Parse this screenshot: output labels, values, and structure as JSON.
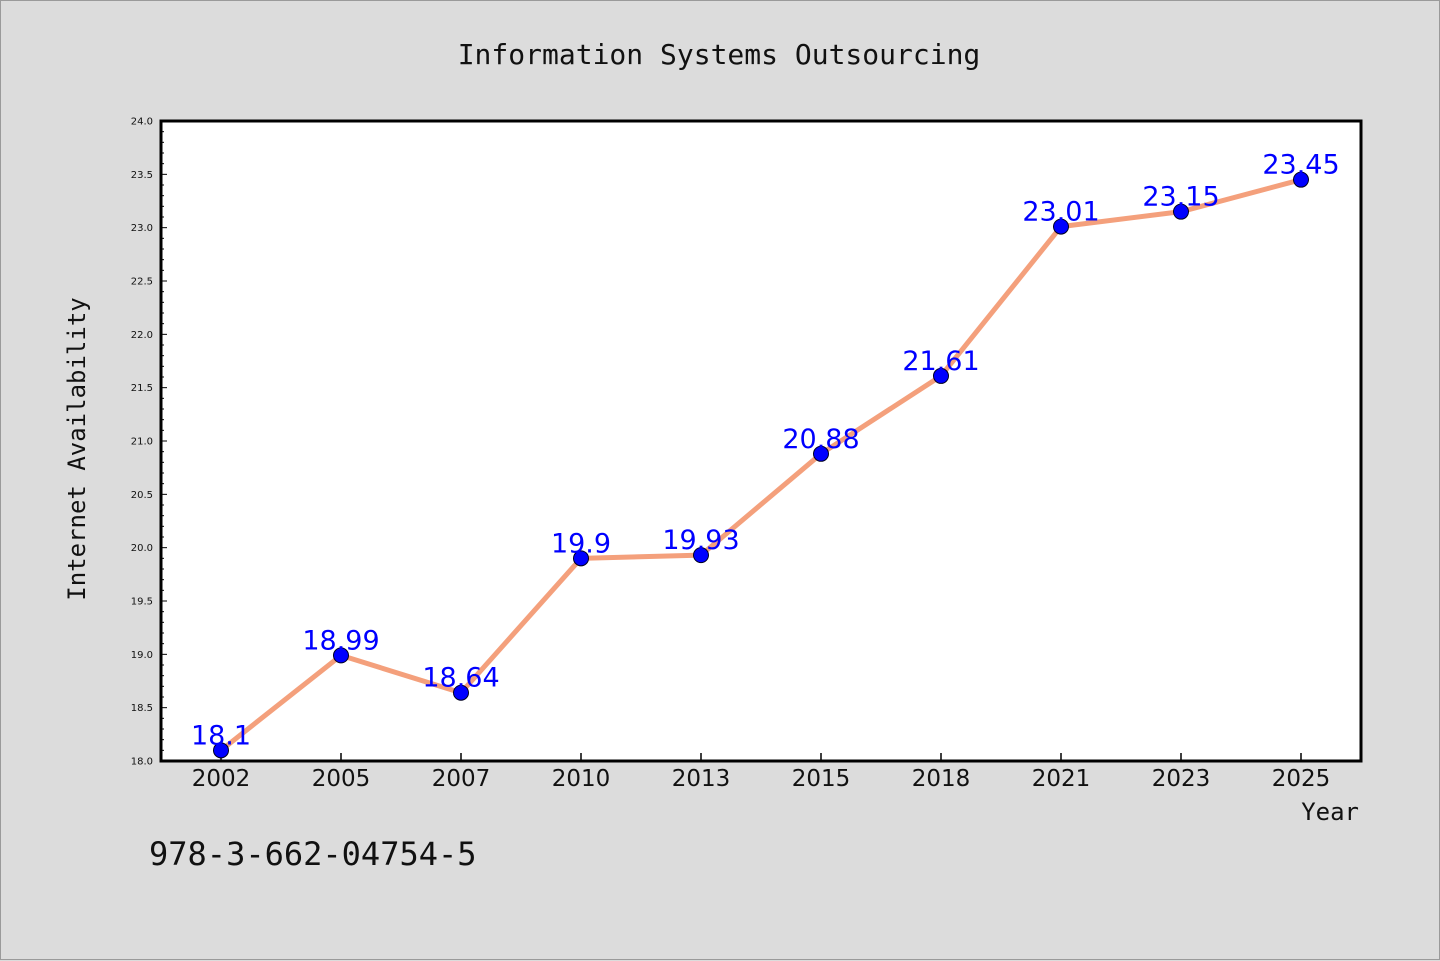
{
  "chart_data": {
    "type": "line",
    "title": "Information Systems Outsourcing",
    "xlabel": "Year",
    "ylabel": "Internet Availability",
    "categories": [
      "2002",
      "2005",
      "2007",
      "2010",
      "2013",
      "2015",
      "2018",
      "2021",
      "2023",
      "2025"
    ],
    "series": [
      {
        "values": [
          18.1,
          18.99,
          18.64,
          19.9,
          19.93,
          20.88,
          21.61,
          23.01,
          23.15,
          23.45
        ],
        "labels": [
          "18.1",
          "18.99",
          "18.64",
          "19.9",
          "19.93",
          "20.88",
          "21.61",
          "23.01",
          "23.15",
          "23.45"
        ]
      }
    ],
    "ylim": [
      18.0,
      24.0
    ],
    "yticks": [
      "18.0",
      "18.5",
      "19.0",
      "19.5",
      "20.0",
      "20.5",
      "21.0",
      "21.5",
      "22.0",
      "22.5",
      "23.0",
      "23.5",
      "24.0"
    ],
    "grid": false,
    "legend": "none",
    "annotation": "978-3-662-04754-5",
    "colors": {
      "line": "#f4a07c",
      "marker": "#0000ff",
      "data_label": "#0000ff",
      "background": "#dcdcdc",
      "plot_background": "#ffffff"
    }
  }
}
